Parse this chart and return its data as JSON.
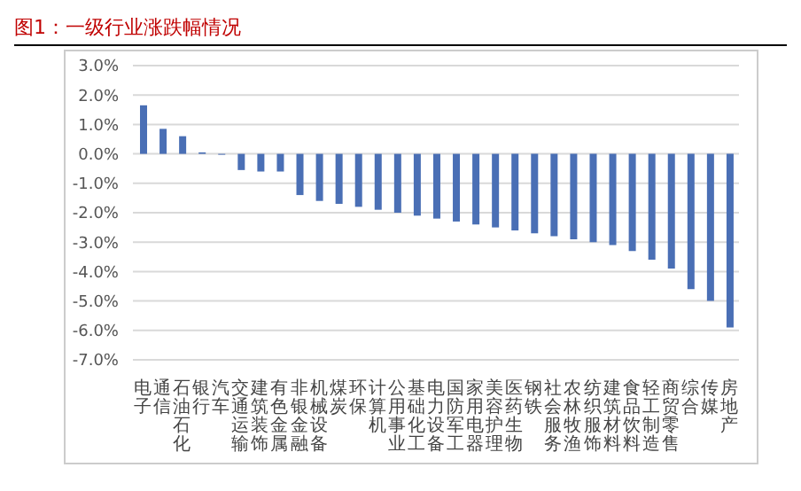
{
  "chart_data": {
    "type": "bar",
    "title": "图1：一级行业涨跌幅情况",
    "categories": [
      "电子",
      "通信",
      "石油石化",
      "银行",
      "汽车",
      "交通运输",
      "建筑装饰",
      "有色金属",
      "非银金融",
      "机械设备",
      "煤炭",
      "环保",
      "计算机",
      "公用事业",
      "基础化工",
      "电力设备",
      "国防军工",
      "家用电器",
      "美容护理",
      "医药生物",
      "钢铁",
      "社会服务",
      "农林牧渔",
      "纺织服饰",
      "建筑材料",
      "食品饮料",
      "轻工制造",
      "商贸零售",
      "综合",
      "传媒",
      "房地产"
    ],
    "values": [
      1.65,
      0.85,
      0.6,
      0.05,
      -0.03,
      -0.55,
      -0.6,
      -0.6,
      -1.4,
      -1.6,
      -1.7,
      -1.8,
      -1.9,
      -2.0,
      -2.1,
      -2.2,
      -2.3,
      -2.4,
      -2.5,
      -2.6,
      -2.7,
      -2.8,
      -2.9,
      -3.0,
      -3.1,
      -3.3,
      -3.6,
      -3.9,
      -4.6,
      -5.0,
      -5.9
    ],
    "color": "#4a6fb5",
    "ylim": [
      -7,
      3
    ],
    "yticks": [
      {
        "value": 3,
        "label": "3.0%"
      },
      {
        "value": 2,
        "label": "2.0%"
      },
      {
        "value": 1,
        "label": "1.0%"
      },
      {
        "value": 0,
        "label": "0.0%"
      },
      {
        "value": -1,
        "label": "-1.0%"
      },
      {
        "value": -2,
        "label": "-2.0%"
      },
      {
        "value": -3,
        "label": "-3.0%"
      },
      {
        "value": -4,
        "label": "-4.0%"
      },
      {
        "value": -5,
        "label": "-5.0%"
      },
      {
        "value": -6,
        "label": "-6.0%"
      },
      {
        "value": -7,
        "label": "-7.0%"
      }
    ],
    "grid": "y"
  }
}
